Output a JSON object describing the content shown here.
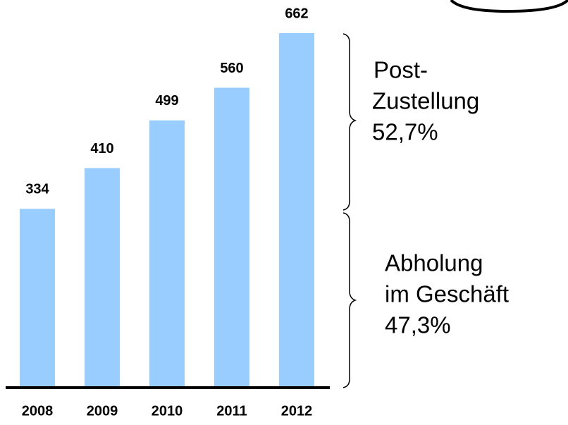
{
  "chart_data": {
    "type": "bar",
    "categories": [
      "2008",
      "2009",
      "2010",
      "2011",
      "2012"
    ],
    "values": [
      334,
      410,
      499,
      560,
      662
    ],
    "color": "#99ccff",
    "annotations": [
      {
        "lines": [
          "Post-",
          "Zustellung",
          "52,7%"
        ]
      },
      {
        "lines": [
          "Abholung",
          "im Geschäft",
          "47,3%"
        ]
      }
    ]
  }
}
